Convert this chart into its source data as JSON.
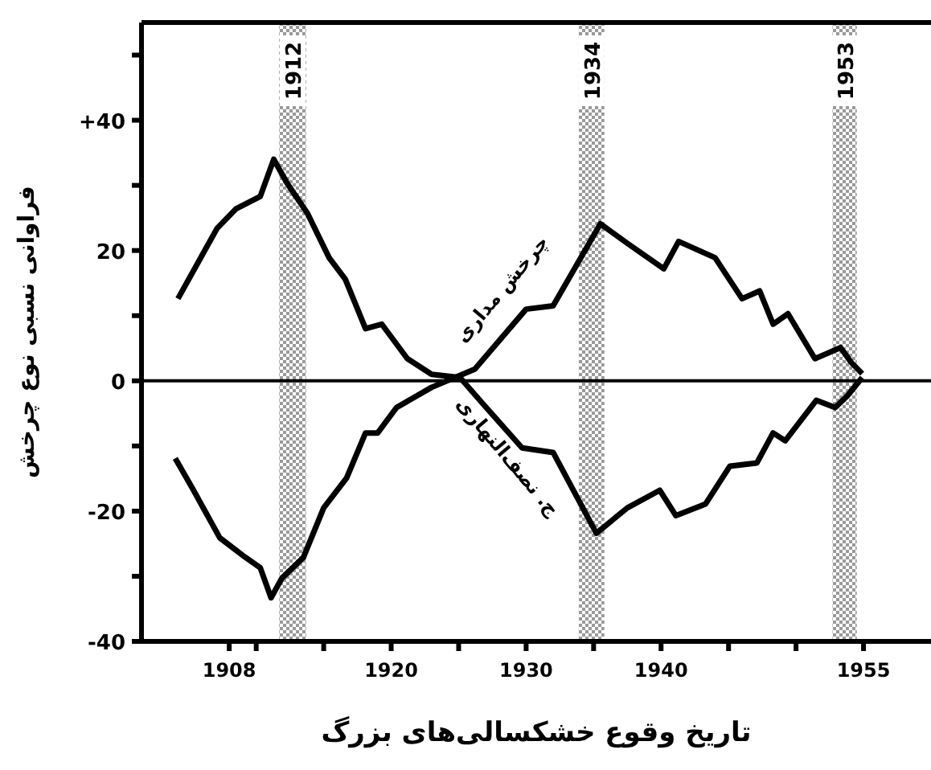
{
  "chart_data": {
    "type": "line",
    "ylabel": "فراوانی نسبی نوع چرخش",
    "xlabel": "تاریخ وقوع خشکسالی‌های بزرگ",
    "xlim": [
      1901.5,
      1960
    ],
    "xticks": [
      1908,
      {
        "value": 1910,
        "label": null
      },
      {
        "value": 1915,
        "label": null
      },
      1920,
      {
        "value": 1925,
        "label": null
      },
      1930,
      {
        "value": 1935,
        "label": null
      },
      1940,
      {
        "value": 1945,
        "label": null
      },
      {
        "value": 1950,
        "label": null
      },
      1955
    ],
    "ylim": [
      -40,
      55
    ],
    "yticks": [
      -40,
      {
        "value": -30,
        "label": null
      },
      -20,
      {
        "value": -10,
        "label": null
      },
      0,
      {
        "value": 10,
        "label": null
      },
      20,
      {
        "value": 30,
        "label": null
      },
      {
        "value": 40,
        "label": "+40"
      },
      {
        "value": 50,
        "label": null
      }
    ],
    "legend": false,
    "grid": false,
    "marker": "none",
    "line_style": "solid",
    "ref_lines": [
      {
        "axis": "y",
        "value": 0,
        "color": "#000000"
      }
    ],
    "bands": [
      {
        "axis": "x",
        "from": 1911.7,
        "to": 1913.7,
        "label": "1912",
        "color": "#9a9a9a"
      },
      {
        "axis": "x",
        "from": 1933.9,
        "to": 1935.8,
        "label": "1934",
        "color": "#9a9a9a"
      },
      {
        "axis": "x",
        "from": 1952.7,
        "to": 1954.5,
        "label": "1953",
        "color": "#9a9a9a"
      }
    ],
    "series": [
      {
        "name": "ج. نصف‌النهاری",
        "color": "#000000",
        "x": [
          1904.2,
          1907.1,
          1908.5,
          1910.3,
          1911.3,
          1912.3,
          1913.8,
          1915.4,
          1916.6,
          1918.1,
          1919.3,
          1921.2,
          1923,
          1925.1,
          1927,
          1929.7,
          1932,
          1935.2,
          1937.5,
          1939.9,
          1941.1,
          1943.3,
          1945.1,
          1947.1,
          1948.3,
          1949.2,
          1951.5,
          1952.9,
          1953.8,
          1954.9
        ],
        "values": [
          12.6,
          23.4,
          26.4,
          28.3,
          34,
          30.3,
          25.7,
          18.9,
          15.6,
          8,
          8.7,
          3.4,
          1,
          0.5,
          -4,
          -10.3,
          -11,
          -23.4,
          -19.5,
          -16.8,
          -20.7,
          -18.9,
          -13.1,
          -12.6,
          -8,
          -9.2,
          -3,
          -4.1,
          -2.3,
          0.5
        ]
      },
      {
        "name": "چرخش مداری",
        "color": "#000000",
        "x": [
          1904,
          1905.3,
          1907.3,
          1909.2,
          1910.3,
          1911.1,
          1911.9,
          1913.5,
          1915,
          1916.7,
          1918.1,
          1919,
          1920.4,
          1923,
          1926.2,
          1930,
          1932,
          1935.5,
          1937.5,
          1940.2,
          1941.3,
          1944,
          1946,
          1947.3,
          1948.3,
          1949.4,
          1951.4,
          1953.3,
          1954.1,
          1954.9
        ],
        "values": [
          -11.9,
          -16.6,
          -24.1,
          -27.1,
          -28.7,
          -33.3,
          -30.3,
          -27.1,
          -19.5,
          -14.9,
          -8,
          -8,
          -4.1,
          -1,
          1.8,
          11,
          11.5,
          24.1,
          21.1,
          17.2,
          21.4,
          18.9,
          12.6,
          13.8,
          8.7,
          10.3,
          3.4,
          5.1,
          2.8,
          1.1
        ]
      }
    ]
  }
}
